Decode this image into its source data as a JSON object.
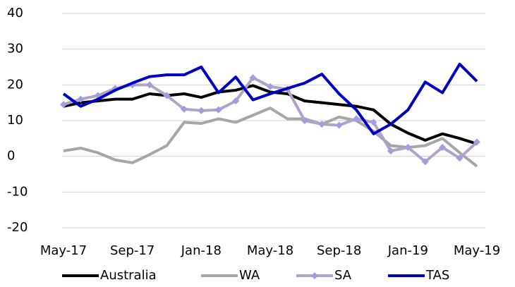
{
  "chart_data": {
    "type": "line",
    "categories": [
      "May-17",
      null,
      null,
      null,
      "Sep-17",
      null,
      null,
      null,
      "Jan-18",
      null,
      null,
      null,
      "May-18",
      null,
      null,
      null,
      "Sep-18",
      null,
      null,
      null,
      "Jan-19",
      null,
      null,
      null,
      "May-19"
    ],
    "series": [
      {
        "name": "Australia",
        "color": "#000000",
        "values": [
          14,
          15,
          15.5,
          16,
          16,
          17.5,
          17,
          17.5,
          16.5,
          18,
          18.5,
          19.8,
          18,
          17.5,
          15.5,
          15,
          14.5,
          14,
          13,
          9,
          6.5,
          4.5,
          6.3,
          5,
          3.5
        ]
      },
      {
        "name": "WA",
        "color": "#a6a6a6",
        "values": [
          1.5,
          2.3,
          1,
          -1,
          -1.8,
          0.5,
          3,
          9.5,
          9.2,
          10.5,
          9.5,
          11.5,
          13.5,
          10.5,
          10.5,
          9,
          11,
          10,
          7,
          3,
          2.5,
          3,
          5,
          1,
          -2.8
        ]
      },
      {
        "name": "SA",
        "color": "#b3a2c7",
        "values": [
          14.5,
          16,
          17,
          19,
          20,
          20,
          17,
          13.2,
          12.8,
          13,
          15.5,
          22,
          19.5,
          18.8,
          10,
          9,
          8.7,
          10.5,
          9.5,
          1.5,
          2.5,
          -1.5,
          2.5,
          -0.5,
          4
        ]
      },
      {
        "name": "TAS",
        "color": "#0000c0",
        "values": [
          17.5,
          14,
          16,
          18.5,
          20.5,
          22.3,
          22.8,
          22.8,
          25,
          17.8,
          22.2,
          15.8,
          17.5,
          19,
          20.5,
          23,
          17.5,
          13,
          6.3,
          9,
          13,
          20.8,
          17.8,
          25.8,
          21
        ]
      }
    ],
    "ylim": [
      -20,
      40
    ],
    "yticks": [
      -20,
      -10,
      0,
      10,
      20,
      30,
      40
    ],
    "grid": true,
    "legend": "bottom"
  }
}
